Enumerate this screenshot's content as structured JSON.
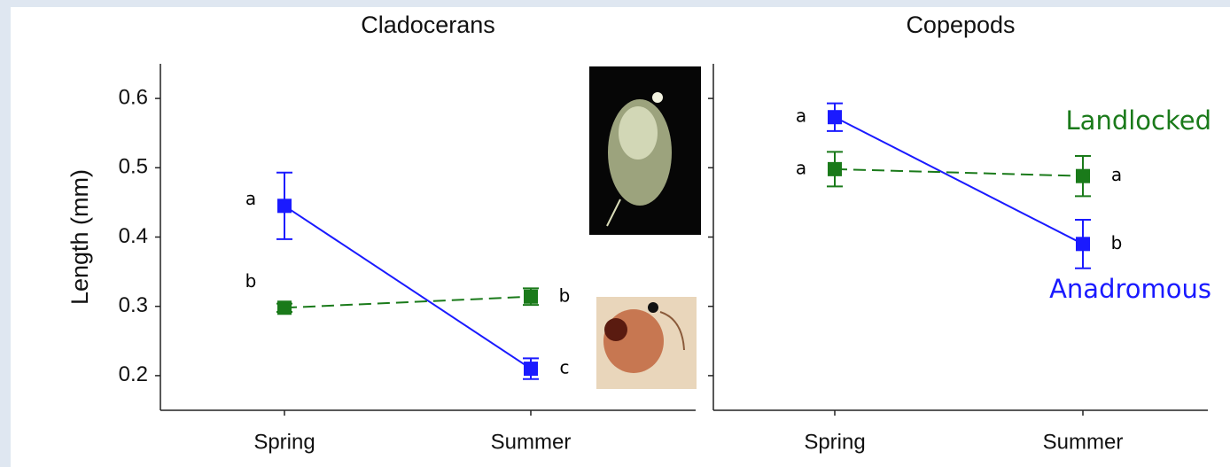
{
  "chart_data": [
    {
      "type": "line",
      "title": "Cladocerans",
      "ylabel": "Length (mm)",
      "categories": [
        "Spring",
        "Summer"
      ],
      "ylim": [
        0.15,
        0.65
      ],
      "yticks": [
        0.2,
        0.3,
        0.4,
        0.5,
        0.6
      ],
      "series": [
        {
          "color": "#1a1aff",
          "dash": false,
          "values": [
            0.445,
            0.21
          ],
          "errors": [
            0.048,
            0.015
          ],
          "letters": [
            "a",
            "c"
          ]
        },
        {
          "color": "#1a7a1a",
          "dash": true,
          "values": [
            0.298,
            0.314
          ],
          "errors": [
            0.006,
            0.012
          ],
          "letters": [
            "b",
            "b"
          ]
        }
      ]
    },
    {
      "type": "line",
      "title": "Copepods",
      "categories": [
        "Spring",
        "Summer"
      ],
      "ylim": [
        0.15,
        0.65
      ],
      "yticks": [
        0.2,
        0.3,
        0.4,
        0.5,
        0.6
      ],
      "series": [
        {
          "name": "Anadromous",
          "color": "#1a1aff",
          "dash": false,
          "values": [
            0.573,
            0.39
          ],
          "errors": [
            0.02,
            0.035
          ],
          "letters": [
            "a",
            "b"
          ]
        },
        {
          "name": "Landlocked",
          "color": "#1a7a1a",
          "dash": true,
          "values": [
            0.498,
            0.488
          ],
          "errors": [
            0.025,
            0.029
          ],
          "letters": [
            "a",
            "a"
          ]
        }
      ]
    }
  ]
}
